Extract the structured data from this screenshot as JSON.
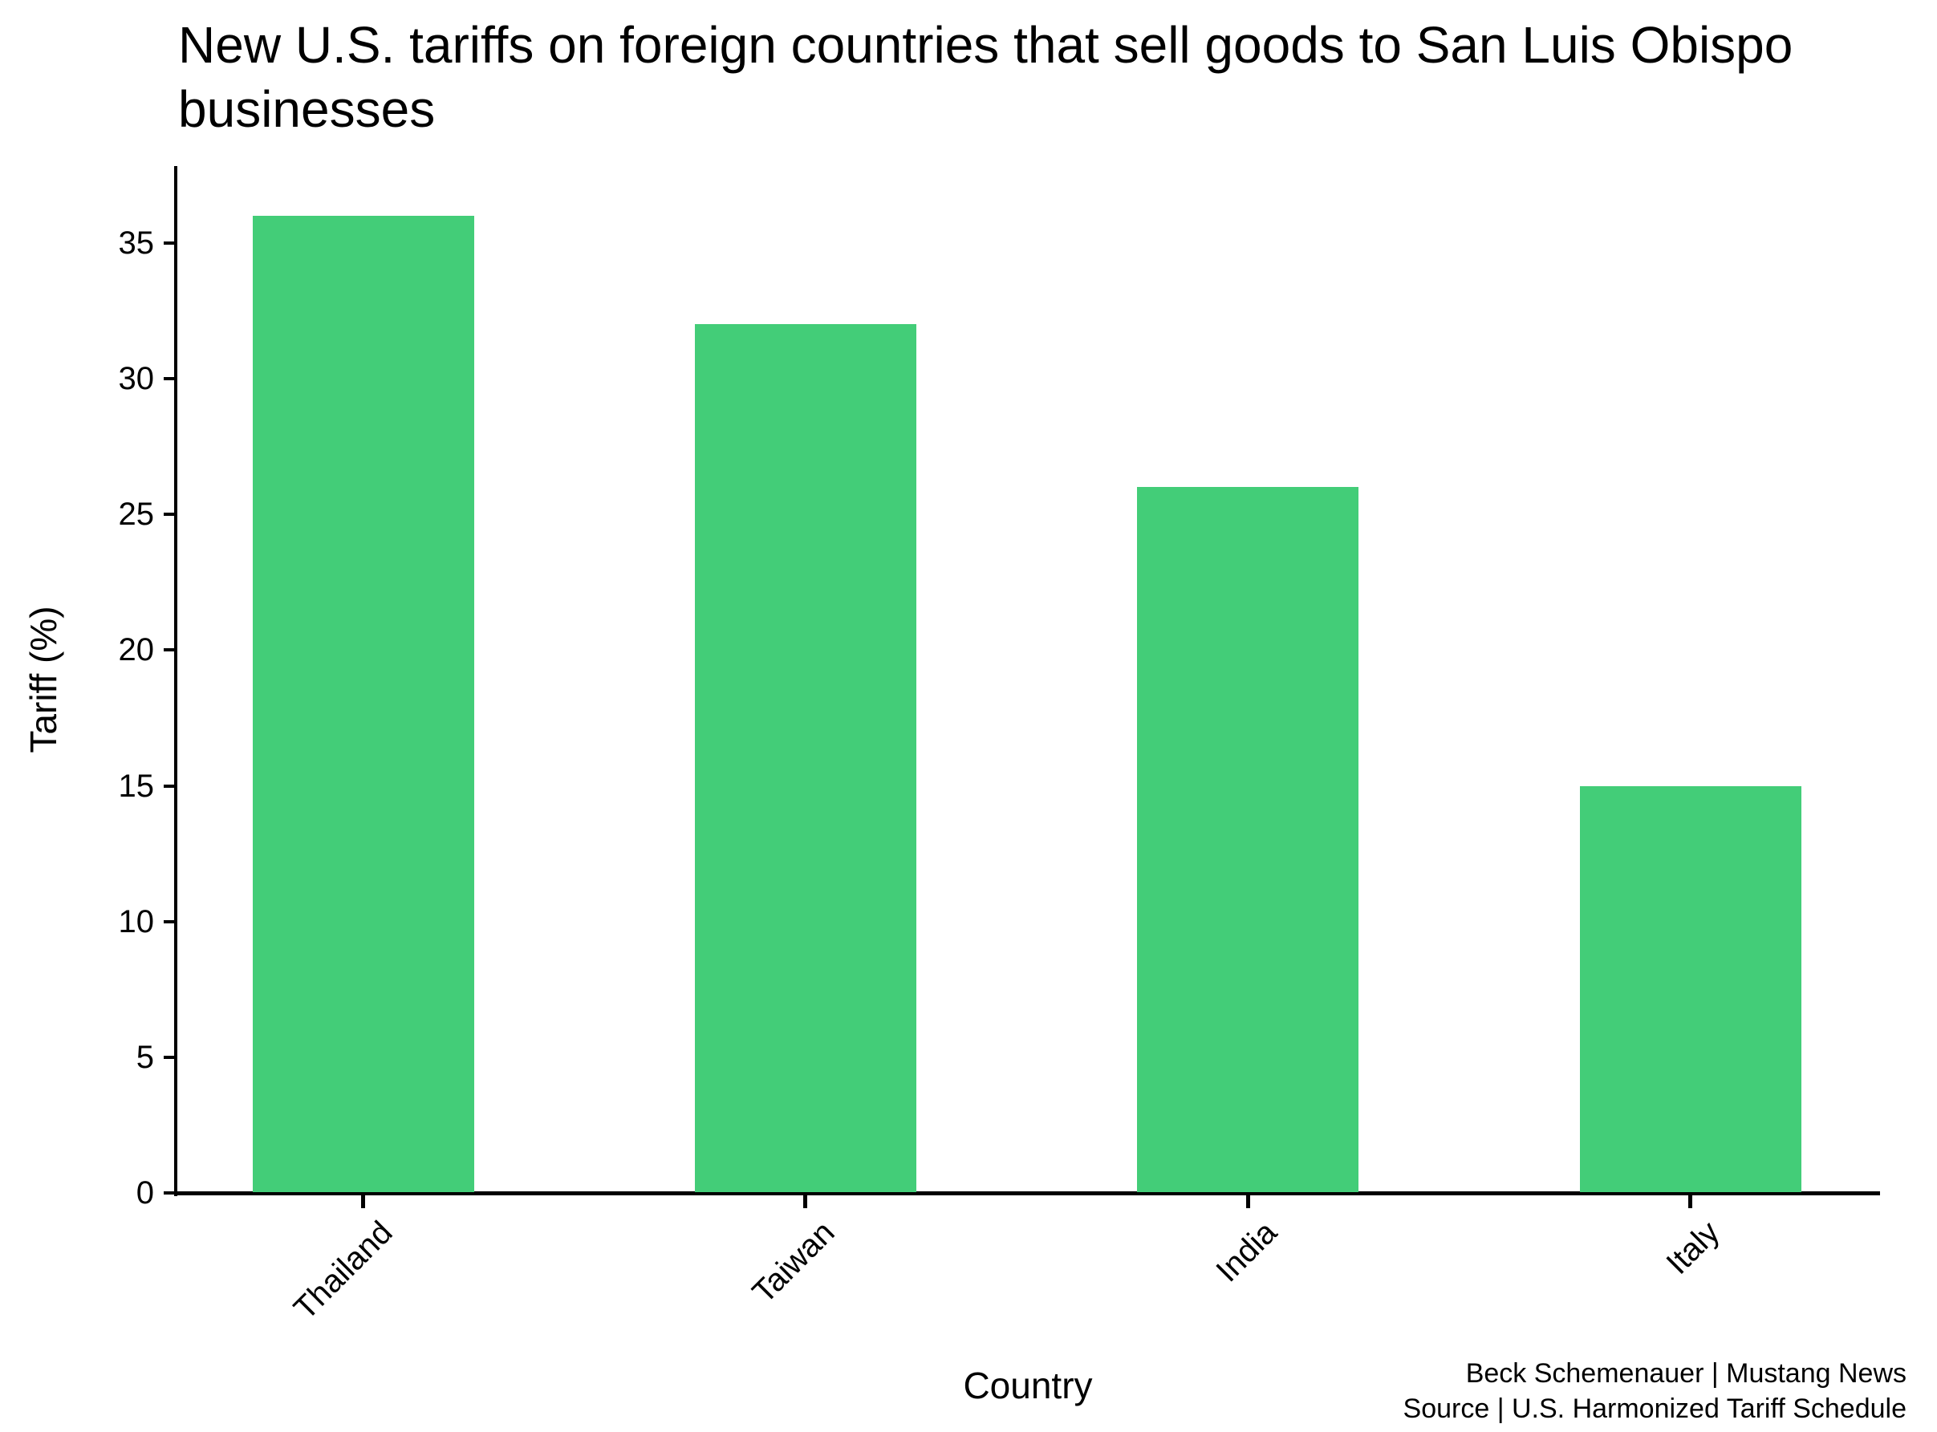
{
  "title": {
    "line1": "New U.S. tariffs on foreign countries that sell goods to San Luis Obispo",
    "line2": "businesses"
  },
  "credit": {
    "line1": "Beck Schemenauer | Mustang News",
    "line2": "Source | U.S. Harmonized Tariff Schedule"
  },
  "chart_data": {
    "type": "bar",
    "title": "New U.S. tariffs on foreign countries that sell goods to San Luis Obispo businesses",
    "categories": [
      "Thailand",
      "Taiwan",
      "India",
      "Italy"
    ],
    "values": [
      36,
      32,
      26,
      15
    ],
    "xlabel": "Country",
    "ylabel": "Tariff (%)",
    "ylim": [
      0,
      37.8
    ],
    "yticks": [
      0,
      5,
      10,
      15,
      20,
      25,
      30,
      35
    ],
    "bar_color": "#43cd78",
    "axis_color": "#000000",
    "grid": false,
    "legend": null,
    "xtick_rotation_deg": 45
  }
}
